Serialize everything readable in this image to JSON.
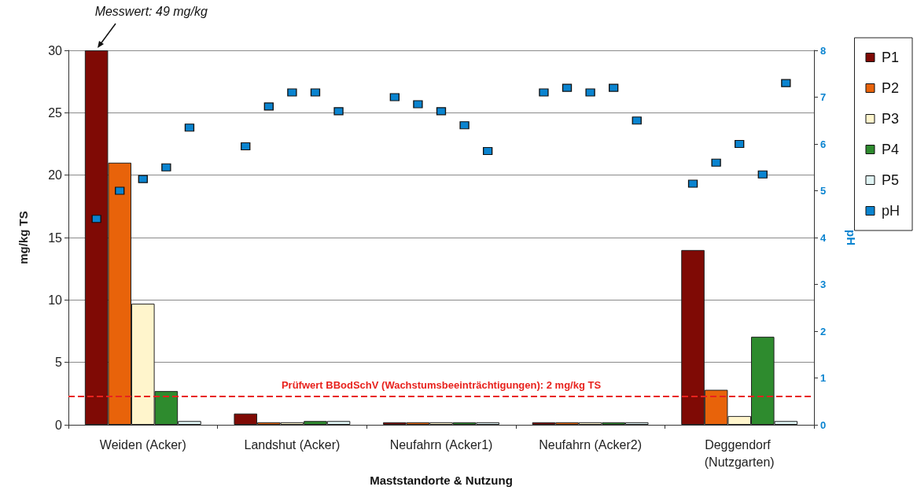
{
  "chart_data": {
    "type": "bar",
    "xlabel": "Maststandorte & Nutzung",
    "ylabel": "mg/kg TS",
    "y2label": "pH",
    "categories": [
      "Weiden (Acker)",
      "Landshut (Acker)",
      "Neufahrn (Acker1)",
      "Neufahrn (Acker2)",
      "Deggendorf (Nutzgarten)"
    ],
    "series": [
      {
        "name": "P1",
        "color": "#7f0a05",
        "values": [
          30,
          0.9,
          0.2,
          0.2,
          14
        ]
      },
      {
        "name": "P2",
        "color": "#e8630a",
        "values": [
          21,
          0.2,
          0.2,
          0.2,
          2.8
        ]
      },
      {
        "name": "P3",
        "color": "#fff5cc",
        "values": [
          9.7,
          0.2,
          0.2,
          0.2,
          0.7
        ]
      },
      {
        "name": "P4",
        "color": "#2e8b2e",
        "values": [
          2.7,
          0.3,
          0.2,
          0.2,
          7.05
        ]
      },
      {
        "name": "P5",
        "color": "#e0f4f4",
        "values": [
          0.3,
          0.3,
          0.2,
          0.2,
          0.3
        ]
      },
      {
        "name": "pH",
        "type": "scatter",
        "axis": "y2",
        "color": "#0a84d0",
        "marker": "square",
        "x": [
          "Weiden (Acker)",
          "Weiden (Acker)",
          "Weiden (Acker)",
          "Weiden (Acker)",
          "Weiden (Acker)",
          "Landshut (Acker)",
          "Landshut (Acker)",
          "Landshut (Acker)",
          "Landshut (Acker)",
          "Landshut (Acker)",
          "Neufahrn (Acker1)",
          "Neufahrn (Acker1)",
          "Neufahrn (Acker1)",
          "Neufahrn (Acker1)",
          "Neufahrn (Acker1)",
          "Neufahrn (Acker2)",
          "Neufahrn (Acker2)",
          "Neufahrn (Acker2)",
          "Neufahrn (Acker2)",
          "Neufahrn (Acker2)",
          "Deggendorf (Nutzgarten)",
          "Deggendorf (Nutzgarten)",
          "Deggendorf (Nutzgarten)",
          "Deggendorf (Nutzgarten)",
          "Deggendorf (Nutzgarten)"
        ],
        "values": [
          4.4,
          5.0,
          5.25,
          5.5,
          6.35,
          5.95,
          6.8,
          7.1,
          7.1,
          6.7,
          7.0,
          6.85,
          6.7,
          6.4,
          5.85,
          7.1,
          7.2,
          7.1,
          7.2,
          6.5,
          5.15,
          5.6,
          6.0,
          5.35,
          7.3
        ]
      }
    ],
    "ylim": [
      0,
      30
    ],
    "yticks": [
      0,
      5,
      10,
      15,
      20,
      25,
      30
    ],
    "y2lim": [
      0,
      8
    ],
    "y2ticks": [
      0,
      1,
      2,
      3,
      4,
      5,
      6,
      7,
      8
    ],
    "grid": "y",
    "legend": "top right",
    "ref_lines": [
      {
        "axis": "y",
        "value": 2.3,
        "label": "Prüfwert BBodSchV (Wachstumsbeeinträchtigungen): 2 mg/kg TS",
        "color": "#e8231e",
        "line_style": "dashed"
      }
    ],
    "annotations": [
      "Messwert: 49 mg/kg"
    ]
  }
}
